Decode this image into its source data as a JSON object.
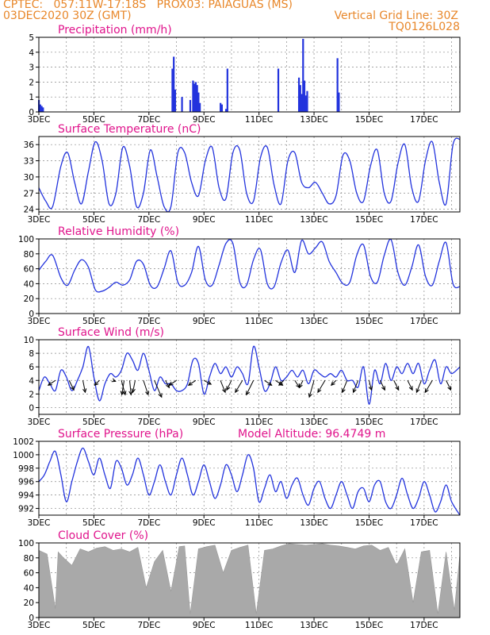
{
  "header": {
    "line1_left": "CPTEC:   057:11W-17:18S   PROX03: PAIAGUAS (MS)",
    "line2_left": "03DEC2020 30Z (GMT)",
    "line2_right": "Vertical Grid Line: 30Z",
    "line3_right": "TQ0126L028"
  },
  "colors": {
    "header": "#e8872a",
    "title": "#e0148c",
    "line": "#2233dd",
    "cloud": "#a9a9a9"
  },
  "chart_data": [
    {
      "type": "bar",
      "title": "Precipitation (mm/h)",
      "xlabel": "",
      "ylabel": "",
      "x_ticks": [
        "3DEC",
        "5DEC",
        "7DEC",
        "9DEC",
        "11DEC",
        "13DEC",
        "15DEC",
        "17DEC"
      ],
      "x_range": [
        3,
        18.3
      ],
      "ylim": [
        0,
        5
      ],
      "y_ticks": [
        0,
        1,
        2,
        3,
        4,
        5
      ],
      "grid": true,
      "x": [
        3.0,
        3.05,
        3.1,
        3.15,
        7.85,
        7.9,
        7.95,
        8.2,
        8.5,
        8.6,
        8.65,
        8.7,
        8.75,
        8.8,
        8.85,
        9.6,
        9.65,
        9.8,
        9.85,
        11.7,
        12.45,
        12.5,
        12.55,
        12.6,
        12.65,
        12.7,
        12.75,
        13.85,
        13.9
      ],
      "values": [
        0.8,
        0.5,
        0.4,
        0.3,
        2.9,
        3.7,
        1.5,
        1.0,
        0.8,
        2.1,
        1.9,
        2.0,
        1.8,
        1.3,
        0.6,
        0.6,
        0.5,
        0.2,
        2.9,
        2.9,
        2.3,
        1.8,
        1.2,
        4.9,
        2.1,
        1.1,
        1.4,
        3.6,
        1.3
      ]
    },
    {
      "type": "line",
      "title": "Surface Temperature (nC)",
      "x_ticks": [
        "3DEC",
        "5DEC",
        "7DEC",
        "9DEC",
        "11DEC",
        "13DEC",
        "15DEC",
        "17DEC"
      ],
      "x_range": [
        3,
        18.3
      ],
      "ylim": [
        23.5,
        37.5
      ],
      "y_ticks": [
        24,
        27,
        30,
        33,
        36
      ],
      "grid": true,
      "x": [
        3.0,
        3.25,
        3.5,
        3.8,
        4.05,
        4.3,
        4.55,
        4.8,
        5.05,
        5.3,
        5.55,
        5.8,
        6.05,
        6.3,
        6.55,
        6.8,
        7.05,
        7.3,
        7.55,
        7.8,
        8.05,
        8.3,
        8.55,
        8.8,
        9.05,
        9.3,
        9.55,
        9.8,
        10.05,
        10.3,
        10.55,
        10.8,
        11.05,
        11.3,
        11.55,
        11.8,
        12.05,
        12.3,
        12.55,
        12.8,
        13.05,
        13.3,
        13.55,
        13.8,
        14.05,
        14.3,
        14.55,
        14.8,
        15.05,
        15.3,
        15.55,
        15.8,
        16.05,
        16.3,
        16.55,
        16.8,
        17.05,
        17.3,
        17.55,
        17.8,
        18.05,
        18.3
      ],
      "values": [
        28,
        25.5,
        24.5,
        32,
        34.5,
        29,
        25,
        31,
        36.5,
        33,
        25,
        27,
        35.5,
        32,
        24.5,
        27,
        35,
        30,
        24.5,
        24.5,
        34.5,
        34.5,
        29,
        26.5,
        33,
        35.5,
        28,
        26,
        34.5,
        35,
        27,
        25.5,
        33.5,
        35.5,
        28.5,
        25,
        33,
        34.5,
        29,
        28,
        29,
        27,
        25,
        26.5,
        34,
        33,
        27,
        25.5,
        32,
        35,
        27,
        25.5,
        32.5,
        36,
        28,
        25.5,
        33,
        36.5,
        29,
        25,
        36,
        37
      ]
    },
    {
      "type": "line",
      "title": "Relative Humidity (%)",
      "x_ticks": [
        "3DEC",
        "5DEC",
        "7DEC",
        "9DEC",
        "11DEC",
        "13DEC",
        "15DEC",
        "17DEC"
      ],
      "x_range": [
        3,
        18.3
      ],
      "ylim": [
        0,
        100
      ],
      "y_ticks": [
        0,
        20,
        40,
        60,
        80,
        100
      ],
      "grid": true,
      "x": [
        3.0,
        3.25,
        3.5,
        3.8,
        4.05,
        4.3,
        4.55,
        4.8,
        5.05,
        5.3,
        5.55,
        5.8,
        6.05,
        6.3,
        6.55,
        6.8,
        7.05,
        7.3,
        7.55,
        7.8,
        8.05,
        8.3,
        8.55,
        8.8,
        9.05,
        9.3,
        9.55,
        9.8,
        10.05,
        10.3,
        10.55,
        10.8,
        11.05,
        11.3,
        11.55,
        11.8,
        12.05,
        12.3,
        12.55,
        12.8,
        13.05,
        13.3,
        13.55,
        13.8,
        14.05,
        14.3,
        14.55,
        14.8,
        15.05,
        15.3,
        15.55,
        15.8,
        16.05,
        16.3,
        16.55,
        16.8,
        17.05,
        17.3,
        17.55,
        17.8,
        18.05,
        18.3
      ],
      "values": [
        58,
        70,
        78,
        48,
        38,
        58,
        72,
        62,
        32,
        30,
        35,
        42,
        38,
        45,
        70,
        66,
        38,
        36,
        60,
        84,
        42,
        38,
        55,
        90,
        45,
        38,
        65,
        94,
        94,
        42,
        38,
        72,
        86,
        40,
        36,
        68,
        85,
        55,
        98,
        80,
        88,
        96,
        70,
        55,
        40,
        42,
        78,
        92,
        50,
        42,
        78,
        99,
        55,
        38,
        62,
        92,
        50,
        38,
        70,
        95,
        40,
        36
      ]
    },
    {
      "type": "line",
      "title": "Surface Wind (m/s)",
      "x_ticks": [
        "3DEC",
        "5DEC",
        "7DEC",
        "9DEC",
        "11DEC",
        "13DEC",
        "15DEC",
        "17DEC"
      ],
      "x_range": [
        3,
        18.3
      ],
      "ylim": [
        -1,
        10
      ],
      "y_ticks": [
        0,
        2,
        4,
        6,
        8,
        10
      ],
      "grid": true,
      "x": [
        3.0,
        3.2,
        3.4,
        3.6,
        3.8,
        4.0,
        4.2,
        4.4,
        4.6,
        4.8,
        5.0,
        5.2,
        5.4,
        5.6,
        5.8,
        6.0,
        6.2,
        6.4,
        6.6,
        6.8,
        7.0,
        7.2,
        7.4,
        7.6,
        7.8,
        8.0,
        8.2,
        8.4,
        8.6,
        8.8,
        9.0,
        9.2,
        9.4,
        9.6,
        9.8,
        10.0,
        10.2,
        10.4,
        10.6,
        10.8,
        11.0,
        11.2,
        11.4,
        11.6,
        11.8,
        12.0,
        12.2,
        12.4,
        12.6,
        12.8,
        13.0,
        13.2,
        13.4,
        13.6,
        13.8,
        14.0,
        14.2,
        14.4,
        14.6,
        14.8,
        15.0,
        15.2,
        15.4,
        15.6,
        15.8,
        16.0,
        16.2,
        16.4,
        16.6,
        16.8,
        17.0,
        17.2,
        17.4,
        17.6,
        17.8,
        18.0,
        18.3
      ],
      "values": [
        2.5,
        4.5,
        3.5,
        2.5,
        5.5,
        4.5,
        2.5,
        4.0,
        6.0,
        9.0,
        4.5,
        1.0,
        3.5,
        5.0,
        4.5,
        5.5,
        8.0,
        7.0,
        5.5,
        8.0,
        5.5,
        2.5,
        4.5,
        3.5,
        3.5,
        2.5,
        2.5,
        3.5,
        7.0,
        6.5,
        2.0,
        4.5,
        6.5,
        5.0,
        6.0,
        4.5,
        6.0,
        5.0,
        3.5,
        9.0,
        6.0,
        2.5,
        3.5,
        6.0,
        4.0,
        4.5,
        5.5,
        4.5,
        5.5,
        3.5,
        5.5,
        5.0,
        4.5,
        5.0,
        4.5,
        5.5,
        4.0,
        4.0,
        3.0,
        6.0,
        0.5,
        5.5,
        3.5,
        6.5,
        4.0,
        6.0,
        5.0,
        6.5,
        5.0,
        6.5,
        3.5,
        5.5,
        7.0,
        3.5,
        6.0,
        5.0,
        6.0
      ],
      "arrows_x": [
        3.6,
        4.1,
        4.6,
        5.2,
        5.7,
        6.0,
        6.1,
        6.3,
        6.5,
        6.8,
        7.2,
        7.6,
        8.0,
        8.7,
        9.0,
        9.6,
        10.0,
        10.4,
        10.8,
        11.2,
        11.6,
        11.9,
        12.3,
        12.6,
        13.0,
        13.4,
        13.8,
        14.2,
        14.6,
        15.0,
        15.4,
        15.9,
        16.4,
        16.9,
        17.3,
        17.8
      ],
      "arrows_u": [
        -1.5,
        1.0,
        0.5,
        -1.0,
        0.5,
        0.8,
        -0.5,
        0.3,
        -0.5,
        1.0,
        1.5,
        0.8,
        -1.5,
        -1.5,
        1.5,
        1.0,
        -1.0,
        -1.5,
        -1.5,
        1.5,
        1.5,
        -1.0,
        1.0,
        -0.8,
        -1.0,
        -1.5,
        -1.0,
        -1.0,
        -1.0,
        0.5,
        1.0,
        1.0,
        1.0,
        -1.0,
        -1.5,
        1.0
      ],
      "arrows_v": [
        1.0,
        2.0,
        2.5,
        1.0,
        0.2,
        3.0,
        3.0,
        3.0,
        2.5,
        3.0,
        3.5,
        1.5,
        1.0,
        1.0,
        0.8,
        2.5,
        2.0,
        2.5,
        3.0,
        1.0,
        1.0,
        1.0,
        1.5,
        1.5,
        3.5,
        2.5,
        1.0,
        2.5,
        2.5,
        2.0,
        2.0,
        2.0,
        2.0,
        2.5,
        2.5,
        2.0
      ]
    },
    {
      "type": "line",
      "title": "Surface Pressure (hPa)",
      "annotation": "Model Altitude: 96.4749 m",
      "x_ticks": [
        "3DEC",
        "5DEC",
        "7DEC",
        "9DEC",
        "11DEC",
        "13DEC",
        "15DEC",
        "17DEC"
      ],
      "x_range": [
        3,
        18.3
      ],
      "ylim": [
        991,
        1002
      ],
      "y_ticks": [
        992,
        994,
        996,
        998,
        1000,
        1002
      ],
      "grid": true,
      "x": [
        3.0,
        3.2,
        3.4,
        3.6,
        3.8,
        4.0,
        4.2,
        4.4,
        4.6,
        4.8,
        5.0,
        5.2,
        5.4,
        5.6,
        5.8,
        6.0,
        6.2,
        6.4,
        6.6,
        6.8,
        7.0,
        7.2,
        7.4,
        7.6,
        7.8,
        8.0,
        8.2,
        8.4,
        8.6,
        8.8,
        9.0,
        9.2,
        9.4,
        9.6,
        9.8,
        10.0,
        10.2,
        10.4,
        10.6,
        10.8,
        11.0,
        11.2,
        11.4,
        11.6,
        11.8,
        12.0,
        12.2,
        12.4,
        12.6,
        12.8,
        13.0,
        13.2,
        13.4,
        13.6,
        13.8,
        14.0,
        14.2,
        14.4,
        14.6,
        14.8,
        15.0,
        15.2,
        15.4,
        15.6,
        15.8,
        16.0,
        16.2,
        16.4,
        16.6,
        16.8,
        17.0,
        17.2,
        17.4,
        17.6,
        17.8,
        18.0,
        18.3
      ],
      "values": [
        996,
        997,
        999,
        1000.5,
        997,
        993,
        996,
        999,
        1001,
        999,
        997,
        999.5,
        997,
        995,
        999,
        998,
        995.5,
        997,
        999.5,
        997,
        994,
        996,
        998.5,
        996,
        994,
        997,
        999.5,
        997,
        994,
        996,
        998.5,
        996,
        993.5,
        995.5,
        998.5,
        997,
        994.5,
        997,
        1000,
        998,
        993,
        995,
        997,
        994.5,
        996,
        993.5,
        995.5,
        996.5,
        994,
        992.5,
        995,
        996,
        993.5,
        992,
        994,
        996,
        994,
        992,
        994.5,
        995,
        993,
        995.5,
        996,
        993,
        992,
        994,
        996.5,
        994,
        992,
        993.5,
        996,
        994,
        991.5,
        993,
        995.5,
        993,
        991
      ]
    },
    {
      "type": "area",
      "title": "Cloud Cover (%)",
      "x_ticks": [
        "3DEC",
        "5DEC",
        "7DEC",
        "9DEC",
        "11DEC",
        "13DEC",
        "15DEC",
        "17DEC"
      ],
      "x_range": [
        3,
        18.3
      ],
      "ylim": [
        0,
        100
      ],
      "y_ticks": [
        0,
        20,
        40,
        60,
        80,
        100
      ],
      "grid": true,
      "x": [
        3.0,
        3.3,
        3.6,
        3.7,
        3.9,
        4.2,
        4.5,
        4.8,
        5.1,
        5.4,
        5.7,
        6.0,
        6.3,
        6.6,
        6.9,
        7.2,
        7.5,
        7.8,
        8.1,
        8.3,
        8.5,
        8.8,
        9.1,
        9.4,
        9.7,
        10.0,
        10.3,
        10.6,
        10.9,
        11.2,
        11.5,
        11.8,
        12.1,
        12.4,
        12.7,
        13.0,
        13.3,
        13.6,
        13.9,
        14.2,
        14.5,
        14.8,
        15.1,
        15.4,
        15.7,
        16.0,
        16.3,
        16.6,
        16.9,
        17.2,
        17.5,
        17.8,
        18.1,
        18.3
      ],
      "values": [
        90,
        85,
        12,
        88,
        80,
        70,
        92,
        88,
        93,
        95,
        90,
        92,
        88,
        94,
        40,
        75,
        90,
        35,
        95,
        96,
        5,
        92,
        95,
        97,
        60,
        90,
        94,
        97,
        5,
        90,
        92,
        96,
        99,
        98,
        97,
        98,
        99,
        97,
        96,
        94,
        92,
        96,
        97,
        90,
        94,
        70,
        92,
        20,
        88,
        90,
        5,
        88,
        10,
        85
      ]
    }
  ]
}
